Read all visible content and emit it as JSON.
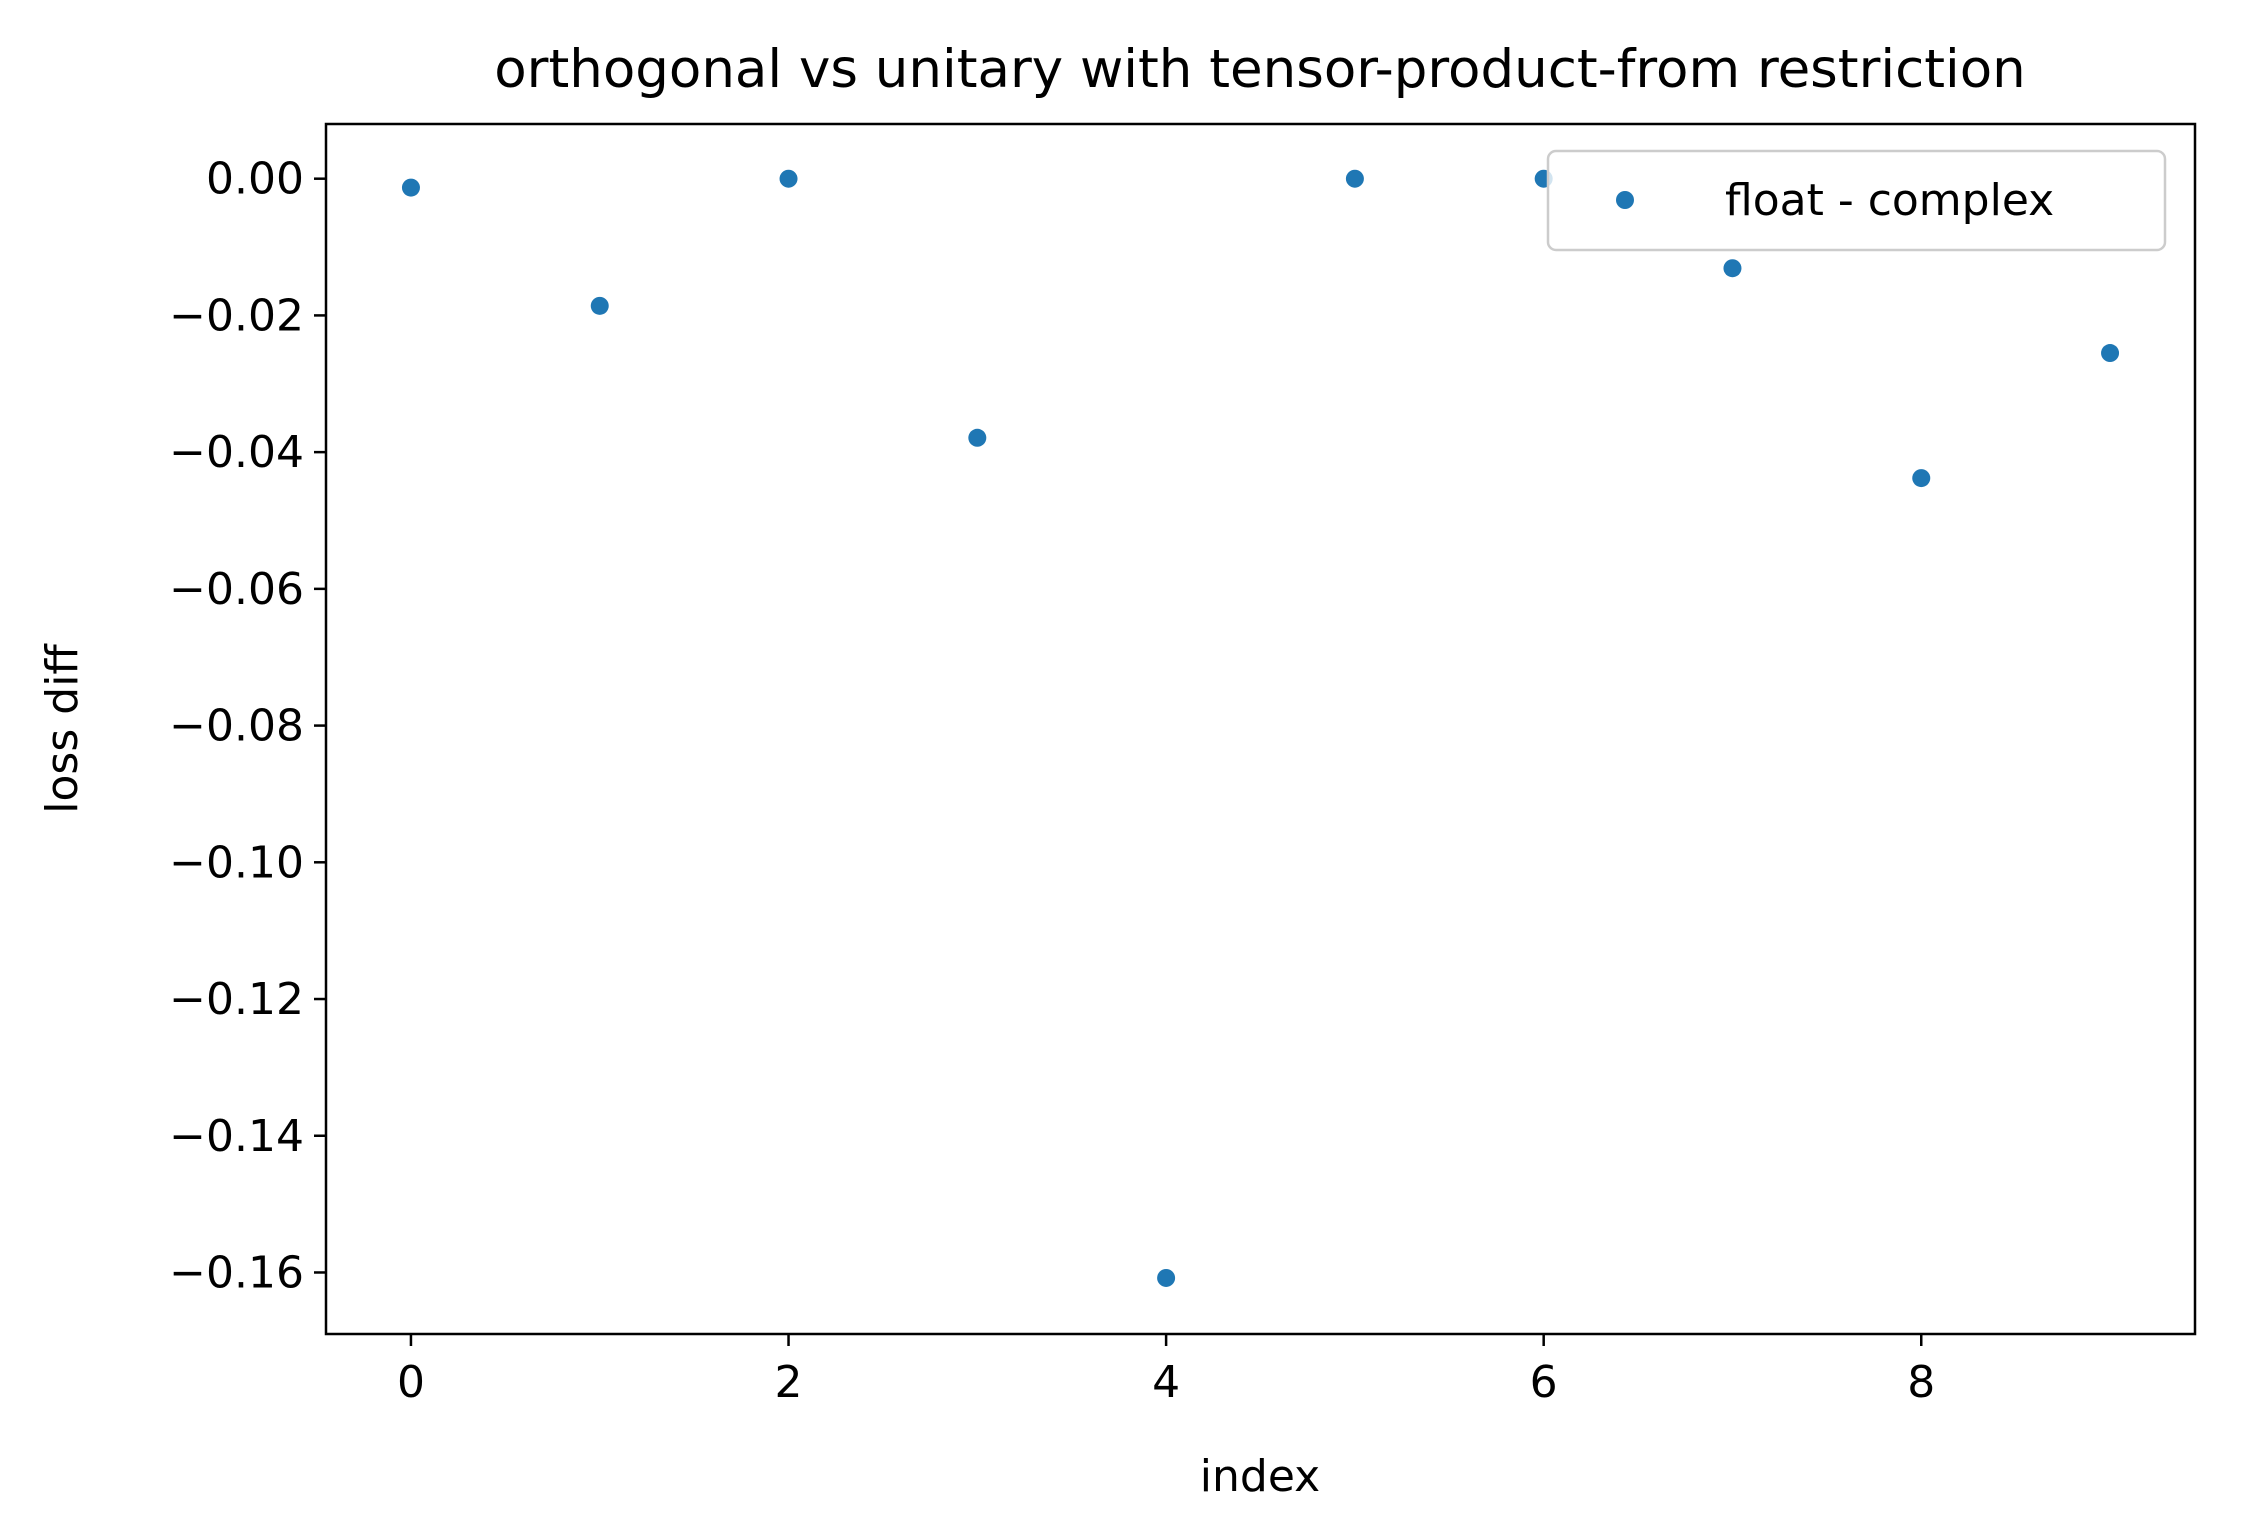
{
  "chart_data": {
    "type": "scatter",
    "title": "orthogonal vs unitary with tensor-product-from restriction",
    "xlabel": "index",
    "ylabel": "loss diff",
    "xlim": [
      -0.45,
      9.45
    ],
    "ylim": [
      -0.169,
      0.008
    ],
    "x_ticks": [
      0,
      2,
      4,
      6,
      8
    ],
    "x_tick_labels": [
      "0",
      "2",
      "4",
      "6",
      "8"
    ],
    "y_ticks": [
      0,
      -0.02,
      -0.04,
      -0.06,
      -0.08,
      -0.1,
      -0.12,
      -0.14,
      -0.16
    ],
    "y_tick_labels": [
      "0.00",
      "−0.02",
      "−0.04",
      "−0.06",
      "−0.08",
      "−0.10",
      "−0.12",
      "−0.14",
      "−0.16"
    ],
    "grid": false,
    "legend_position": "top-right",
    "color": "#1f77b4",
    "series": [
      {
        "name": "float - complex",
        "x": [
          0,
          1,
          2,
          3,
          4,
          5,
          6,
          7,
          8,
          9
        ],
        "y": [
          -0.0013,
          -0.0186,
          0.0,
          -0.0379,
          -0.1608,
          0.0,
          0.0,
          -0.0131,
          -0.0438,
          -0.0255
        ]
      }
    ]
  }
}
